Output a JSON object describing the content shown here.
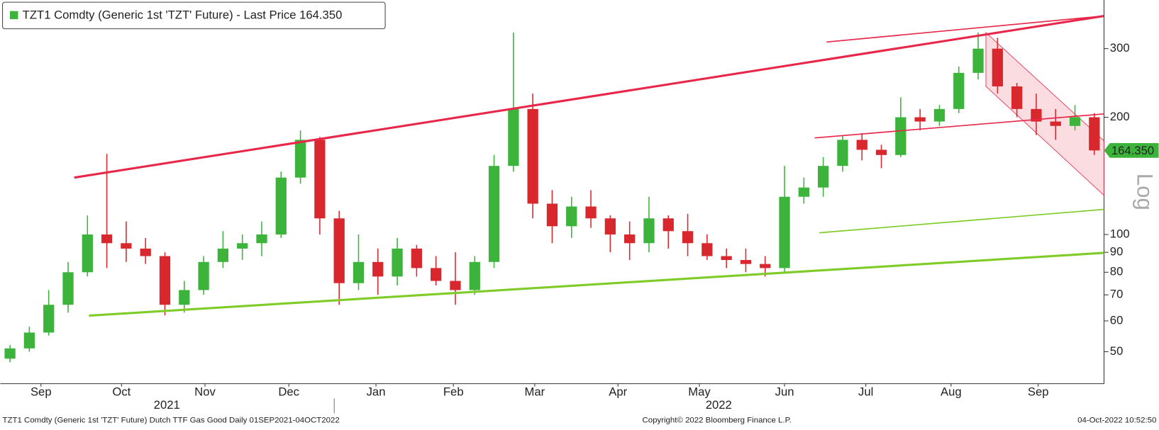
{
  "chart_data": {
    "type": "candlestick",
    "title": "TZT1 Comdty (Generic 1st 'TZT' Future) - Last Price 164.350",
    "scale_label": "Log",
    "footer_left": "TZT1 Comdty (Generic 1st 'TZT' Future) Dutch TTF Gas Good  Daily 01SEP2021-04OCT2022",
    "footer_center": "Copyright© 2022 Bloomberg Finance L.P.",
    "footer_right": "04-Oct-2022 10:52:50",
    "log_scale": true,
    "up_color": "#3cb43c",
    "down_color": "#d9272e",
    "last_price": {
      "value": 164.35,
      "label": "164.350"
    },
    "categories": [
      null,
      null,
      null,
      null,
      null,
      null,
      null,
      null,
      null,
      null,
      null,
      null,
      null,
      null,
      null,
      null,
      null,
      null,
      null,
      null,
      null,
      null,
      null,
      null,
      null,
      null,
      null,
      null,
      null,
      null,
      null,
      null,
      null,
      null,
      null,
      null,
      null,
      null,
      null,
      null,
      null,
      null,
      null,
      null,
      null,
      null,
      null,
      null,
      null,
      null,
      null,
      null,
      null,
      null,
      null,
      null,
      null
    ],
    "open": [
      48,
      51,
      56,
      66,
      80,
      100,
      95,
      92,
      88,
      66,
      72,
      85,
      92,
      95,
      100,
      140,
      175,
      110,
      75,
      85,
      78,
      92,
      82,
      76,
      72,
      85,
      150,
      210,
      120,
      105,
      118,
      110,
      100,
      95,
      110,
      102,
      95,
      88,
      86,
      84,
      82,
      125,
      132,
      150,
      175,
      165,
      160,
      200,
      195,
      210,
      260,
      300,
      240,
      210,
      195,
      190,
      200
    ],
    "high": [
      52,
      58,
      72,
      85,
      112,
      161,
      108,
      98,
      90,
      76,
      88,
      102,
      100,
      108,
      145,
      185,
      178,
      115,
      100,
      92,
      98,
      94,
      88,
      90,
      88,
      160,
      330,
      230,
      130,
      125,
      130,
      112,
      108,
      125,
      112,
      113,
      100,
      92,
      92,
      88,
      150,
      140,
      158,
      180,
      182,
      170,
      225,
      210,
      215,
      270,
      330,
      320,
      245,
      230,
      210,
      215,
      205
    ],
    "low": [
      47,
      50,
      55,
      63,
      78,
      82,
      85,
      84,
      62,
      63,
      70,
      82,
      86,
      88,
      98,
      135,
      100,
      66,
      72,
      70,
      74,
      78,
      74,
      66,
      70,
      82,
      145,
      110,
      95,
      98,
      104,
      90,
      86,
      90,
      92,
      88,
      86,
      82,
      80,
      78,
      80,
      120,
      125,
      145,
      155,
      148,
      158,
      185,
      190,
      205,
      250,
      230,
      200,
      180,
      175,
      185,
      160
    ],
    "close": [
      51,
      56,
      66,
      80,
      100,
      95,
      92,
      88,
      66,
      72,
      85,
      92,
      95,
      100,
      140,
      175,
      110,
      75,
      85,
      78,
      92,
      82,
      76,
      72,
      85,
      150,
      210,
      120,
      105,
      118,
      110,
      100,
      95,
      110,
      102,
      95,
      88,
      86,
      84,
      82,
      125,
      132,
      150,
      175,
      165,
      160,
      200,
      195,
      210,
      260,
      300,
      240,
      210,
      195,
      190,
      200,
      164.35
    ],
    "ylim": [
      41.4,
      400
    ],
    "yticks": [
      50,
      60,
      70,
      80,
      90,
      100,
      200,
      300
    ],
    "xticks": [
      {
        "value": 1.6,
        "label": "Sep"
      },
      {
        "value": 5.76,
        "label": "Oct"
      },
      {
        "value": 10.07,
        "label": "Nov"
      },
      {
        "value": 14.4,
        "label": "Dec"
      },
      {
        "value": 18.9,
        "label": "Jan"
      },
      {
        "value": 22.9,
        "label": "Feb"
      },
      {
        "value": 27.1,
        "label": "Mar"
      },
      {
        "value": 31.4,
        "label": "Apr"
      },
      {
        "value": 35.6,
        "label": "May"
      },
      {
        "value": 40.0,
        "label": "Jun"
      },
      {
        "value": 44.2,
        "label": "Jul"
      },
      {
        "value": 48.6,
        "label": "Aug"
      },
      {
        "value": 53.1,
        "label": "Sep"
      }
    ],
    "year_labels": [
      {
        "value": 8.1,
        "label": "2021"
      },
      {
        "value": 36.6,
        "label": "2022"
      }
    ],
    "trendlines": [
      {
        "color": "#e8284a",
        "x": [
          3.32,
          56.5
        ],
        "y": [
          140,
          364
        ]
      },
      {
        "color": "#e8284a",
        "x": [
          42.17,
          56.5
        ],
        "y": [
          312,
          364
        ]
      },
      {
        "color": "#e8284a",
        "x": [
          41.56,
          56.5
        ],
        "y": [
          177,
          204
        ]
      },
      {
        "color": "#7fcc28",
        "x": [
          4.08,
          56.5
        ],
        "y": [
          61.9,
          89.7
        ]
      },
      {
        "color": "#7fcc28",
        "x": [
          41.8,
          56.5
        ],
        "y": [
          101,
          116
        ]
      }
    ],
    "channel": {
      "color": "#f6b3bd",
      "x": [
        50.4,
        56.5
      ],
      "upper": [
        330,
        174
      ],
      "lower": [
        240,
        126
      ]
    }
  }
}
